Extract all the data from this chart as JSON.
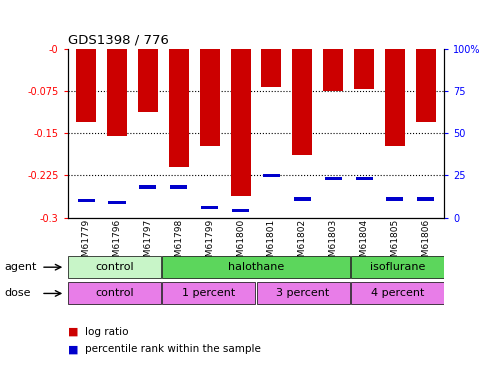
{
  "title": "GDS1398 / 776",
  "samples": [
    "GSM61779",
    "GSM61796",
    "GSM61797",
    "GSM61798",
    "GSM61799",
    "GSM61800",
    "GSM61801",
    "GSM61802",
    "GSM61803",
    "GSM61804",
    "GSM61805",
    "GSM61806"
  ],
  "log_ratio": [
    -0.13,
    -0.155,
    -0.112,
    -0.21,
    -0.172,
    -0.262,
    -0.068,
    -0.188,
    -0.075,
    -0.072,
    -0.172,
    -0.13
  ],
  "percentile": [
    10,
    9,
    18,
    18,
    6,
    4,
    25,
    11,
    23,
    23,
    11,
    11
  ],
  "ylim_left": [
    -0.3,
    0.0
  ],
  "ylim_right": [
    0,
    100
  ],
  "yticks_left": [
    0.0,
    -0.075,
    -0.15,
    -0.225,
    -0.3
  ],
  "ytick_labels_left": [
    "-0",
    "-0.075",
    "-0.15",
    "-0.225",
    "-0.3"
  ],
  "yticks_right": [
    0,
    25,
    50,
    75,
    100
  ],
  "ytick_labels_right": [
    "0",
    "25",
    "50",
    "75",
    "100%"
  ],
  "agent_light_color": "#c8f5c8",
  "agent_dark_color": "#5cd65c",
  "dose_color": "#e87de8",
  "bar_color": "#cc0000",
  "percentile_color": "#0000cc",
  "agent_groups": [
    {
      "label": "control",
      "start": 0,
      "end": 3,
      "color": "#c8f5c8"
    },
    {
      "label": "halothane",
      "start": 3,
      "end": 9,
      "color": "#5cd65c"
    },
    {
      "label": "isoflurane",
      "start": 9,
      "end": 12,
      "color": "#5cd65c"
    }
  ],
  "dose_groups": [
    {
      "label": "control",
      "start": 0,
      "end": 3
    },
    {
      "label": "1 percent",
      "start": 3,
      "end": 6
    },
    {
      "label": "3 percent",
      "start": 6,
      "end": 9
    },
    {
      "label": "4 percent",
      "start": 9,
      "end": 12
    }
  ]
}
